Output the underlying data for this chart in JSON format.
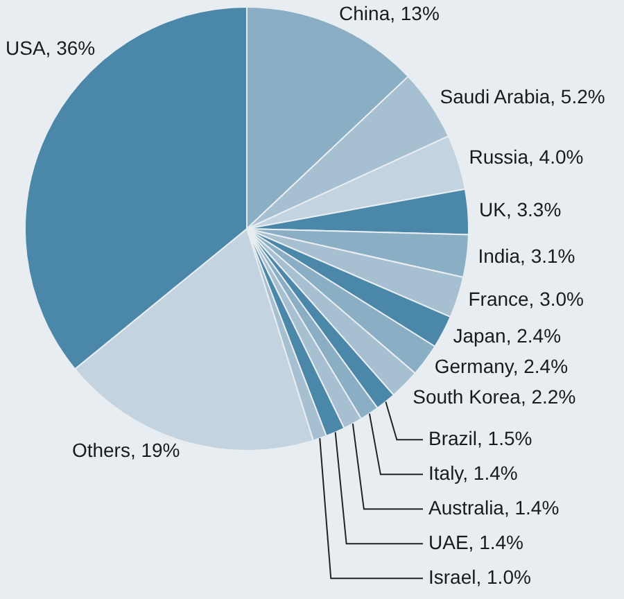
{
  "chart_data": {
    "type": "pie",
    "categories": [
      "China",
      "Saudi Arabia",
      "Russia",
      "UK",
      "India",
      "France",
      "Japan",
      "Germany",
      "South Korea",
      "Brazil",
      "Italy",
      "Australia",
      "UAE",
      "Israel",
      "Others",
      "USA"
    ],
    "values": [
      13,
      5.2,
      4.0,
      3.3,
      3.1,
      3.0,
      2.4,
      2.4,
      2.2,
      1.5,
      1.4,
      1.4,
      1.4,
      1.0,
      19,
      36
    ],
    "value_labels": [
      "13%",
      "5.2%",
      "4.0%",
      "3.3%",
      "3.1%",
      "3.0%",
      "2.4%",
      "2.4%",
      "2.2%",
      "1.5%",
      "1.4%",
      "1.4%",
      "1.4%",
      "1.0%",
      "19%",
      "36%"
    ],
    "colors": [
      "#8aaec4",
      "#a6bfd1",
      "#c3d3df",
      "#4b87a8",
      "#8aaec4",
      "#a6bfd1",
      "#4b87a8",
      "#8aaec4",
      "#a6bfd1",
      "#4b87a8",
      "#8aaec4",
      "#a6bfd1",
      "#4b87a8",
      "#a6bfd1",
      "#c3d3df",
      "#4b87a8"
    ]
  }
}
